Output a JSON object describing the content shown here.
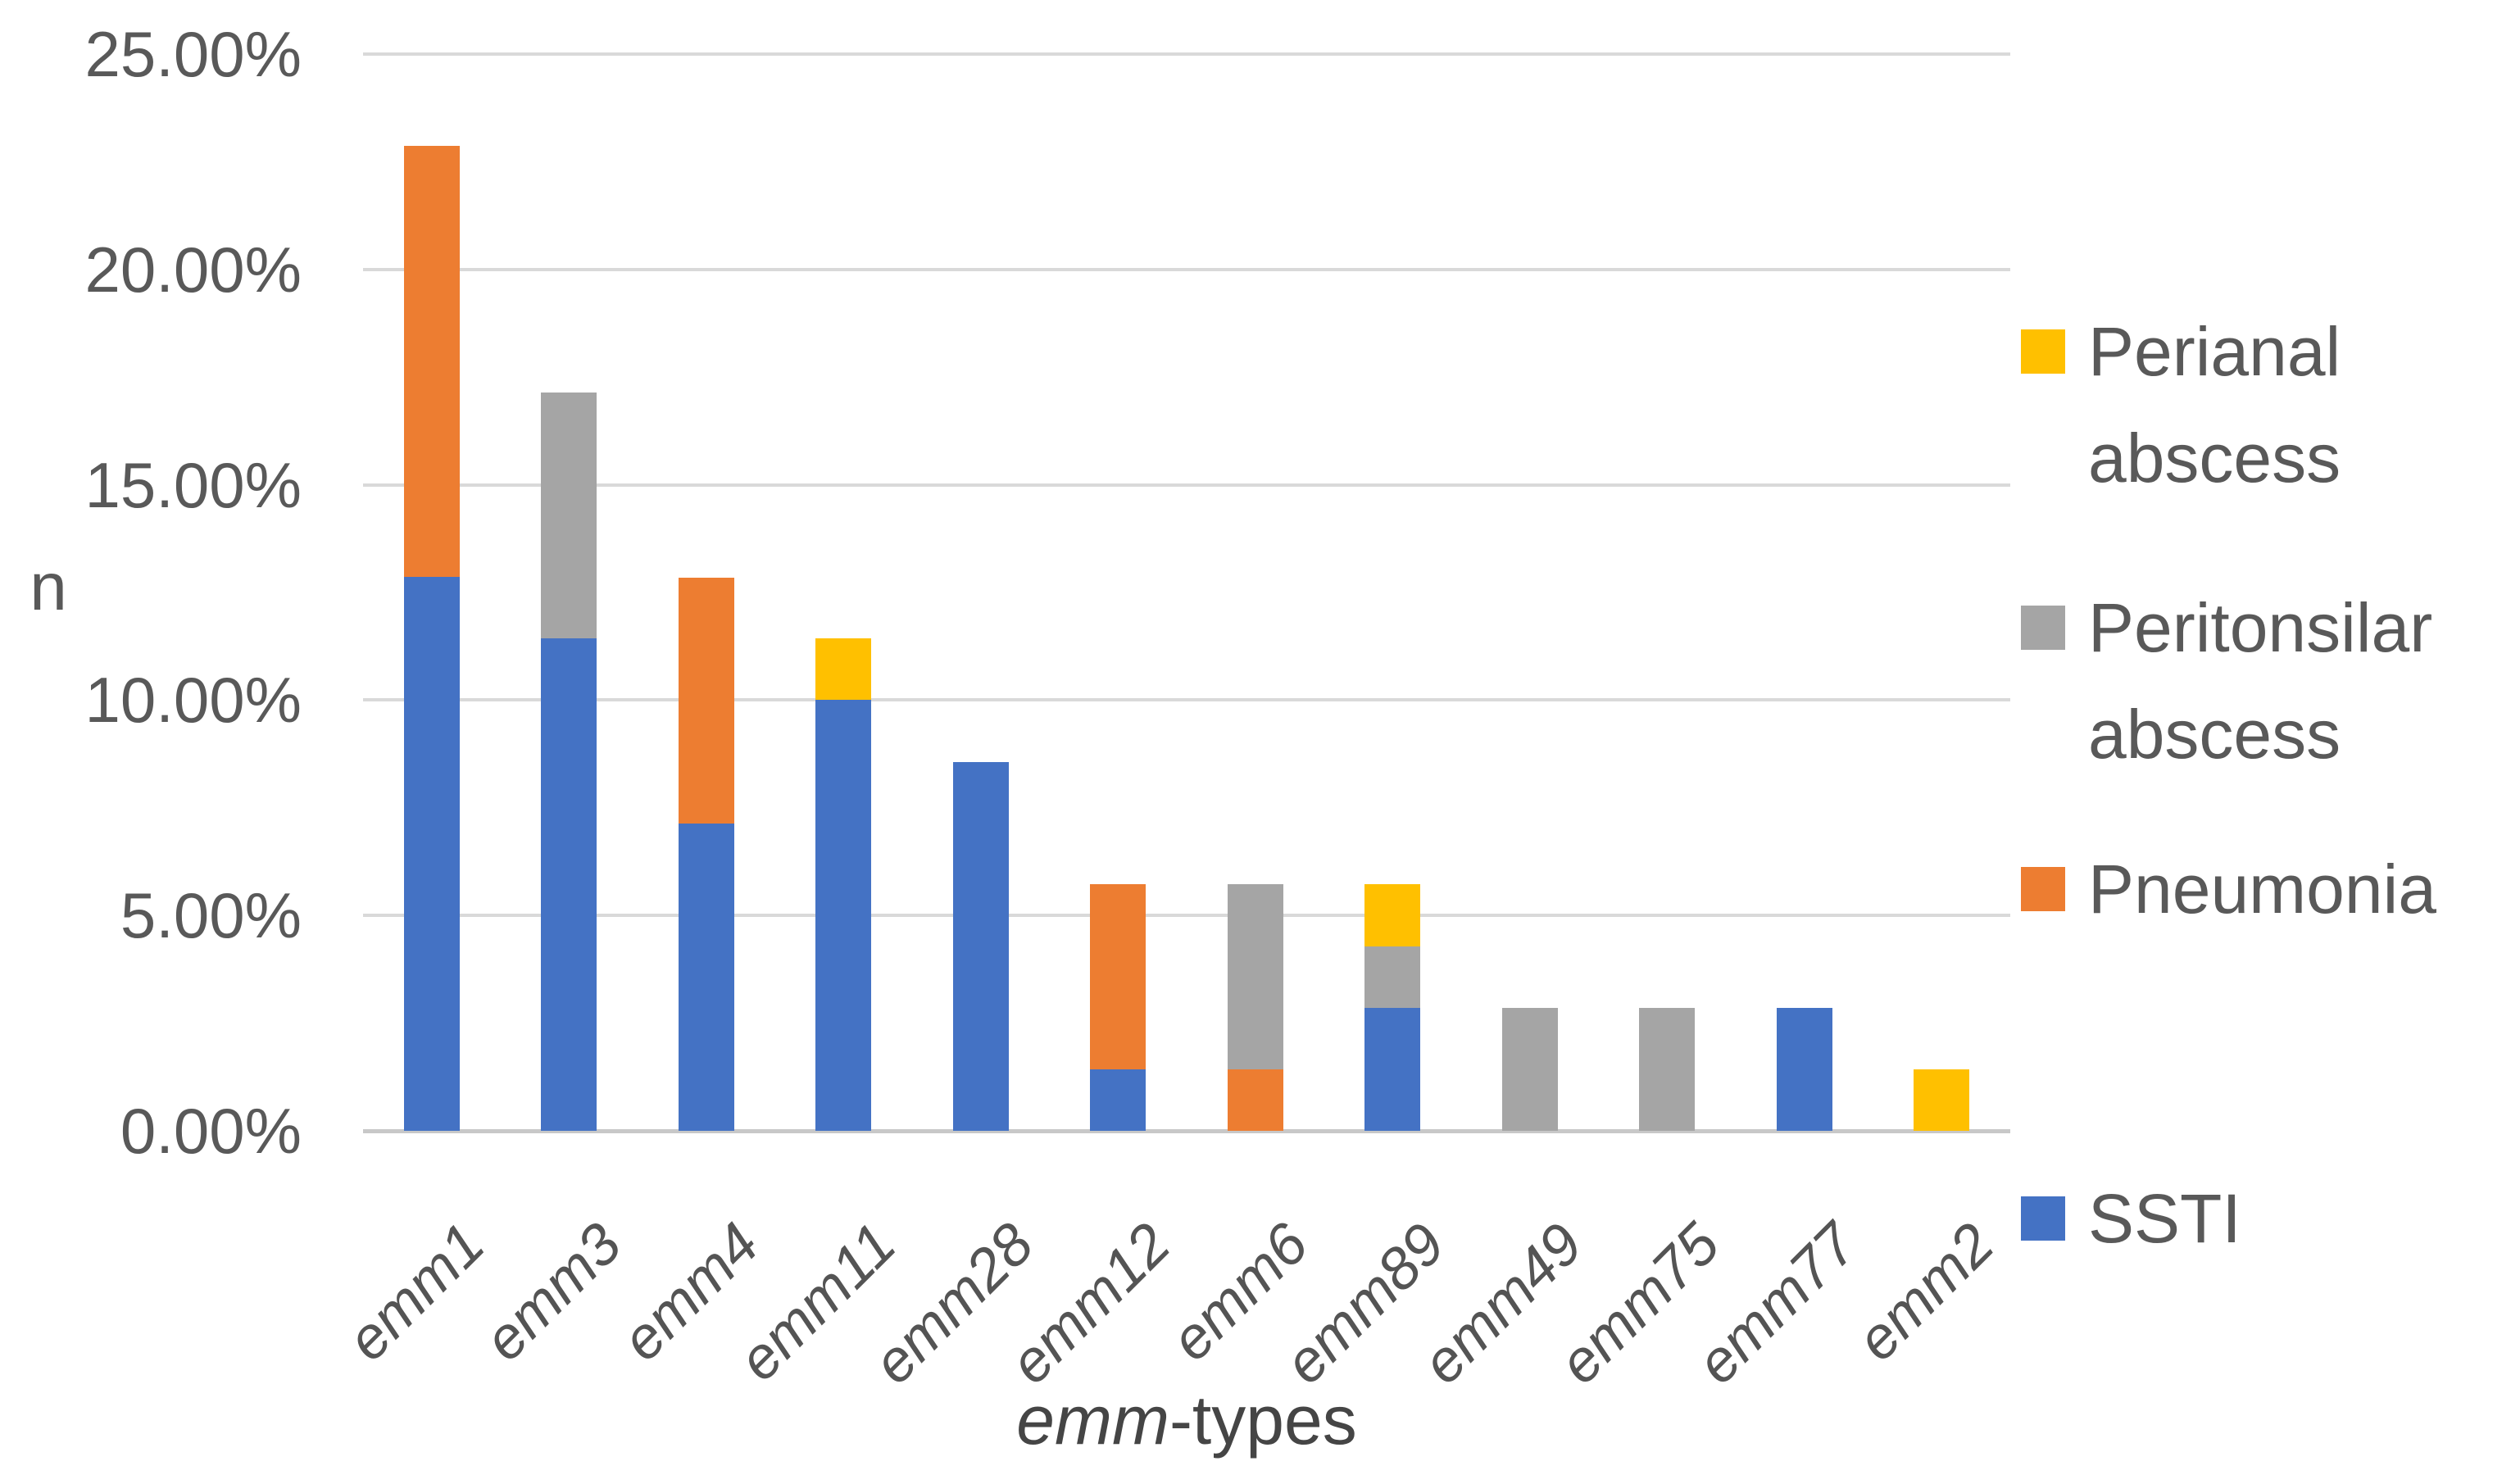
{
  "chart_data": {
    "type": "bar",
    "stacked": true,
    "categories": [
      "emm1",
      "emm3",
      "emm4",
      "emm11",
      "emm28",
      "emm12",
      "emm6",
      "emm89",
      "emm49",
      "emm75",
      "emm77",
      "emm2"
    ],
    "series": [
      {
        "name": "SSTI",
        "color": "#4472C4",
        "values": [
          12.86,
          11.43,
          7.14,
          10.0,
          8.57,
          1.43,
          0,
          2.86,
          0,
          0,
          2.86,
          0
        ]
      },
      {
        "name": "Pneumonia",
        "color": "#ED7D31",
        "values": [
          10.0,
          0,
          5.71,
          0,
          0,
          4.29,
          1.43,
          0,
          0,
          0,
          0,
          0
        ]
      },
      {
        "name": "Peritonsilar abscess",
        "color": "#A5A5A5",
        "values": [
          0,
          5.71,
          0,
          0,
          0,
          0,
          4.29,
          1.43,
          2.86,
          2.86,
          0,
          0
        ]
      },
      {
        "name": "Perianal abscess",
        "color": "#FFC000",
        "values": [
          0,
          0,
          0,
          1.43,
          0,
          0,
          0,
          1.43,
          0,
          0,
          0,
          1.43
        ]
      }
    ],
    "totals": [
      22.86,
      17.14,
      12.86,
      11.43,
      8.57,
      5.71,
      5.71,
      5.71,
      2.86,
      2.86,
      2.86,
      1.43
    ],
    "ylabel": "n",
    "xlabel_italic": "emm",
    "xlabel_rest": "-types",
    "ylim": [
      0,
      25
    ],
    "ytick_step": 5,
    "yticks": [
      "0.00%",
      "5.00%",
      "10.00%",
      "15.00%",
      "20.00%",
      "25.00%"
    ],
    "grid": true,
    "legend_position": "right",
    "legend_order": [
      "Perianal abscess",
      "Peritonsilar abscess",
      "Pneumonia",
      "SSTI"
    ]
  }
}
